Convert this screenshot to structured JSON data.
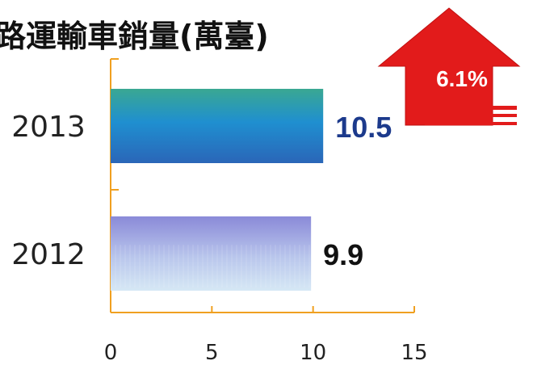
{
  "chart_data": {
    "type": "bar",
    "orientation": "horizontal",
    "title": "路運輸車銷量(萬臺)",
    "categories": [
      "2013",
      "2012"
    ],
    "values": [
      10.5,
      9.9
    ],
    "value_labels": [
      "10.5",
      "9.9"
    ],
    "xlim": [
      0,
      15
    ],
    "x_ticks": [
      "0",
      "5",
      "10",
      "15"
    ],
    "xlabel": "",
    "ylabel": "",
    "grid": false,
    "legend": "none",
    "growth_badge": "6.1%"
  },
  "colors": {
    "axis": "#f0a020",
    "bar_2013_top": "#3aa892",
    "bar_2013_mid": "#1f8fd0",
    "bar_2013_bottom": "#2a66b8",
    "bar_2012_top": "#8a8ad8",
    "bar_2012_bottom": "#d6e8f5",
    "label_2013": "#1c3a8c",
    "label_2012": "#111111",
    "arrow": "#e21b1b"
  }
}
